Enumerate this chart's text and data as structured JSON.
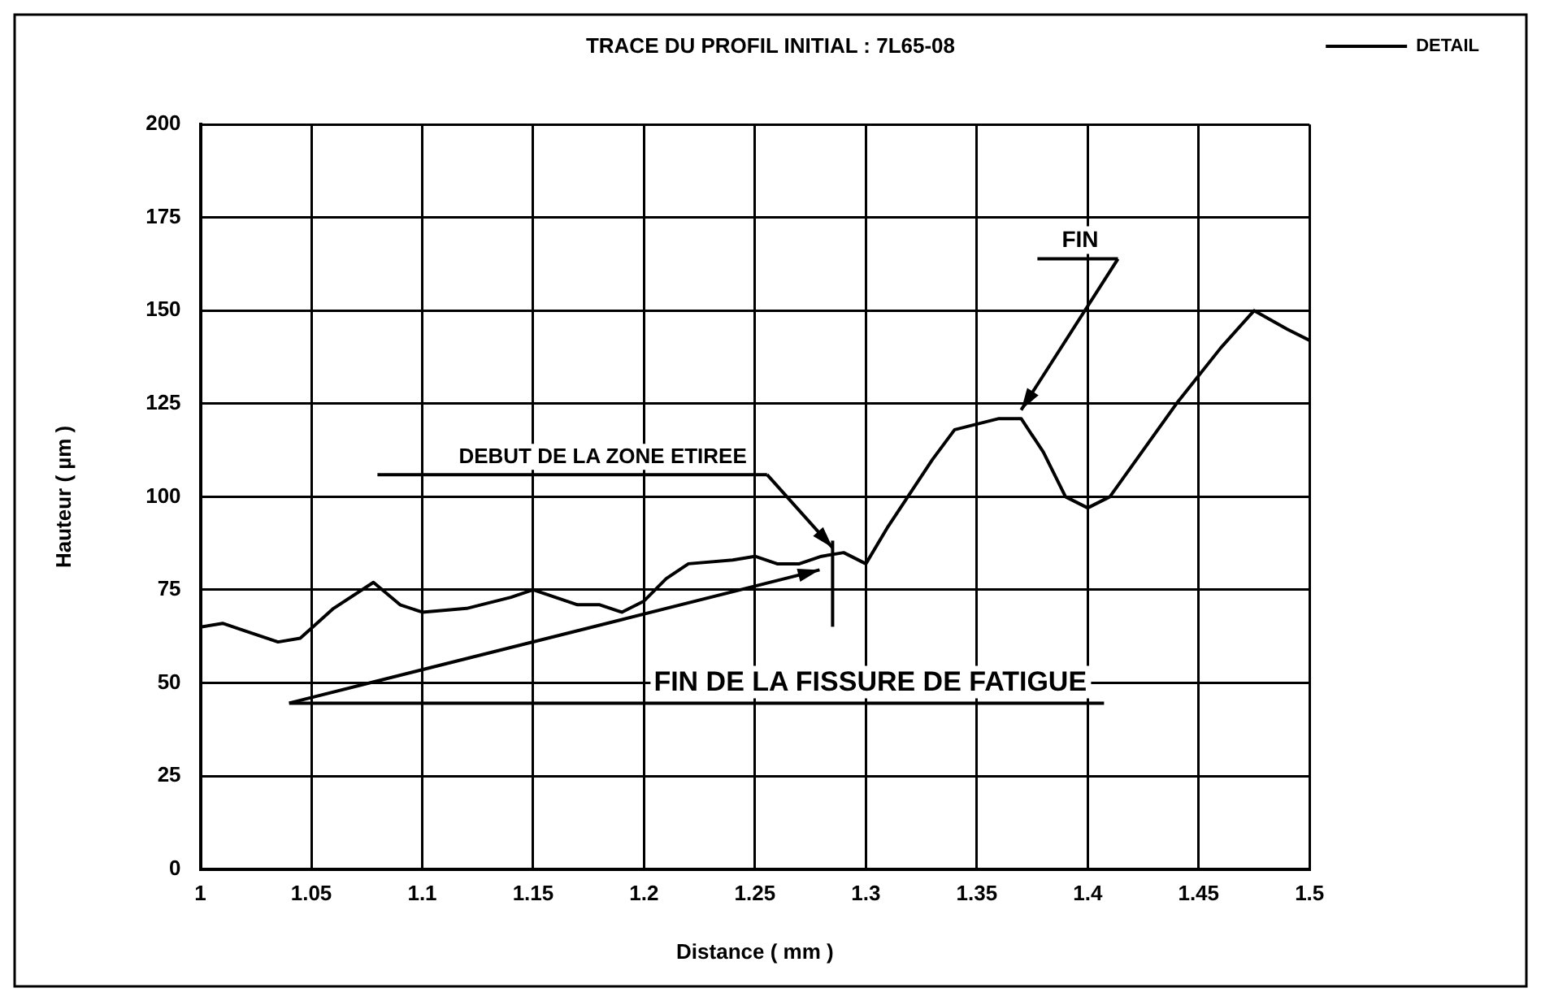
{
  "chart_data": {
    "type": "line",
    "title": "TRACE DU PROFIL INITIAL : 7L65-08",
    "xlabel": "Distance ( mm )",
    "ylabel": "Hauteur ( µm )",
    "series": [
      {
        "name": "DETAIL",
        "color": "#000000",
        "x": [
          1.0,
          1.01,
          1.02,
          1.035,
          1.045,
          1.06,
          1.078,
          1.09,
          1.1,
          1.12,
          1.14,
          1.15,
          1.16,
          1.17,
          1.18,
          1.19,
          1.2,
          1.21,
          1.22,
          1.24,
          1.25,
          1.26,
          1.27,
          1.28,
          1.29,
          1.3,
          1.31,
          1.33,
          1.34,
          1.36,
          1.37,
          1.38,
          1.39,
          1.4,
          1.41,
          1.44,
          1.46,
          1.475,
          1.49,
          1.5
        ],
        "values": [
          65,
          66,
          64,
          61,
          62,
          70,
          77,
          71,
          69,
          70,
          73,
          75,
          73,
          71,
          71,
          69,
          72,
          78,
          82,
          83,
          84,
          82,
          82,
          84,
          85,
          82,
          92,
          110,
          118,
          121,
          121,
          112,
          100,
          97,
          100,
          125,
          140,
          150,
          145,
          142
        ]
      }
    ],
    "annotations": [
      {
        "text": "DEBUT DE LA ZONE ETIREE",
        "x": 1.285,
        "y": 85
      },
      {
        "text": "FIN",
        "x": 1.37,
        "y": 122
      }
    ],
    "ref_lines": [
      {
        "axis": "x",
        "value": 1.285,
        "label": "FIN DE LA FISSURE DE FATIGUE"
      }
    ],
    "xlim": [
      1,
      1.5
    ],
    "xticks": [
      1,
      1.05,
      1.1,
      1.15,
      1.2,
      1.25,
      1.3,
      1.35,
      1.4,
      1.45,
      1.5
    ],
    "ylim": [
      0,
      200
    ],
    "yticks": [
      0,
      25,
      50,
      75,
      100,
      125,
      150,
      175,
      200
    ],
    "grid": true,
    "legend": "top right",
    "marker": "none",
    "line_style": "solid"
  }
}
